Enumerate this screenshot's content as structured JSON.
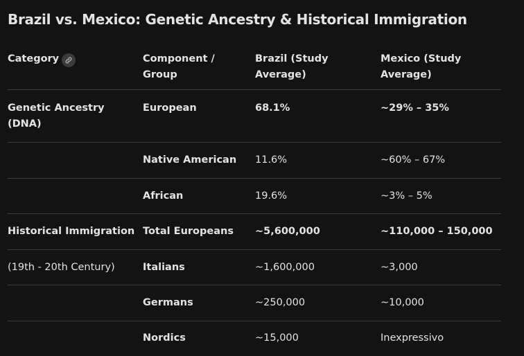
{
  "title": "Brazil vs. Mexico: Genetic Ancestry & Historical Immigration",
  "header": {
    "category": "Category",
    "component": "Component / Group",
    "brazil": "Brazil (Study Average)",
    "mexico": "Mexico (Study Average)"
  },
  "rows": [
    {
      "category": "Genetic Ancestry (DNA)",
      "component": "European",
      "brazil": "68.1%",
      "mexico": "~29% – 35%"
    },
    {
      "category": "",
      "component": "Native American",
      "brazil": "11.6%",
      "mexico": "~60% – 67%"
    },
    {
      "category": "",
      "component": "African",
      "brazil": "19.6%",
      "mexico": "~3% – 5%"
    },
    {
      "category": "Historical Immigration",
      "component": "Total Europeans",
      "brazil": "~5,600,000",
      "mexico": "~110,000 – 150,000"
    },
    {
      "category": "(19th - 20th Century)",
      "component": "Italians",
      "brazil": "~1,600,000",
      "mexico": "~3,000"
    },
    {
      "category": "",
      "component": "Germans",
      "brazil": "~250,000",
      "mexico": "~10,000"
    },
    {
      "category": "",
      "component": "Nordics",
      "brazil": "~15,000",
      "mexico": "Inexpressivo"
    }
  ],
  "icons": {
    "category_link": "link-icon"
  },
  "colors": {
    "background": "#131314",
    "text": "#e3e3e3",
    "divider": "#3c3d3f",
    "chip": "#3a3b3d"
  }
}
